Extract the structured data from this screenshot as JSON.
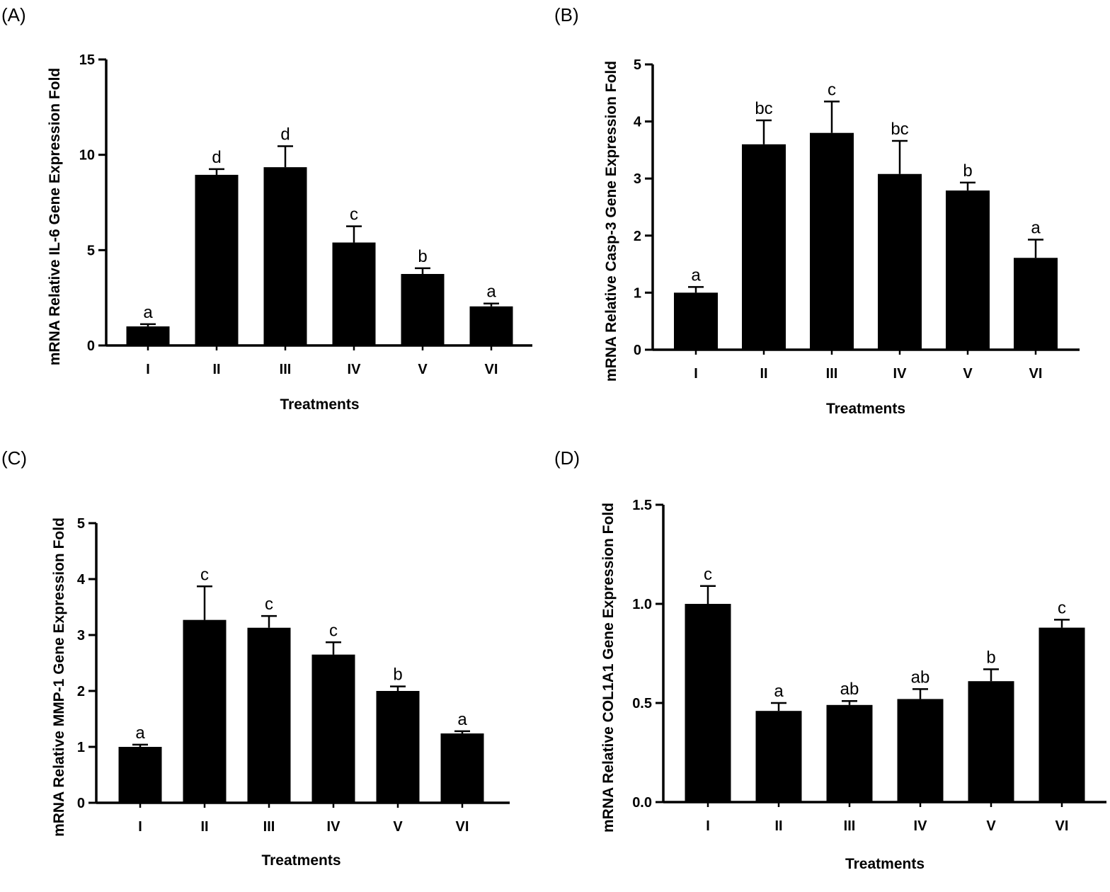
{
  "colors": {
    "bar": "#000000",
    "axis": "#000000",
    "background": "#ffffff"
  },
  "chart_data": [
    {
      "panel": "(A)",
      "type": "bar",
      "categories": [
        "I",
        "II",
        "III",
        "IV",
        "V",
        "VI"
      ],
      "values": [
        1.0,
        8.95,
        9.35,
        5.4,
        3.75,
        2.05
      ],
      "errors": [
        0.12,
        0.3,
        1.1,
        0.85,
        0.3,
        0.15
      ],
      "significance": [
        "a",
        "d",
        "d",
        "c",
        "b",
        "a"
      ],
      "ylabel": "mRNA Relative IL-6  Gene Expression Fold",
      "xlabel": "Treatments",
      "ylim": [
        0,
        15
      ],
      "yticks": [
        0,
        5,
        10,
        15
      ],
      "ytick_labels": [
        "0",
        "5",
        "10",
        "15"
      ]
    },
    {
      "panel": "(B)",
      "type": "bar",
      "categories": [
        "I",
        "II",
        "III",
        "IV",
        "V",
        "VI"
      ],
      "values": [
        1.0,
        3.6,
        3.8,
        3.08,
        2.79,
        1.61
      ],
      "errors": [
        0.1,
        0.42,
        0.55,
        0.58,
        0.14,
        0.32
      ],
      "significance": [
        "a",
        "bc",
        "c",
        "bc",
        "b",
        "a"
      ],
      "ylabel": "mRNA Relative Casp-3 Gene Expression Fold",
      "xlabel": "Treatments",
      "ylim": [
        0,
        5
      ],
      "yticks": [
        0,
        1,
        2,
        3,
        4,
        5
      ],
      "ytick_labels": [
        "0",
        "1",
        "2",
        "3",
        "4",
        "5"
      ]
    },
    {
      "panel": "(C)",
      "type": "bar",
      "categories": [
        "I",
        "II",
        "III",
        "IV",
        "V",
        "VI"
      ],
      "values": [
        1.0,
        3.27,
        3.13,
        2.65,
        2.0,
        1.24
      ],
      "errors": [
        0.04,
        0.6,
        0.21,
        0.22,
        0.08,
        0.04
      ],
      "significance": [
        "a",
        "c",
        "c",
        "c",
        "b",
        "a"
      ],
      "ylabel": "mRNA Relative MMP-1 Gene Expression Fold",
      "xlabel": "Treatments",
      "ylim": [
        0,
        5
      ],
      "yticks": [
        0,
        1,
        2,
        3,
        4,
        5
      ],
      "ytick_labels": [
        "0",
        "1",
        "2",
        "3",
        "4",
        "5"
      ]
    },
    {
      "panel": "(D)",
      "type": "bar",
      "categories": [
        "I",
        "II",
        "III",
        "IV",
        "V",
        "VI"
      ],
      "values": [
        1.0,
        0.46,
        0.49,
        0.52,
        0.61,
        0.88
      ],
      "errors": [
        0.09,
        0.04,
        0.02,
        0.05,
        0.06,
        0.04
      ],
      "significance": [
        "c",
        "a",
        "ab",
        "ab",
        "b",
        "c"
      ],
      "ylabel": "mRNA Relative COL1A1 Gene Expression Fold",
      "xlabel": "Treatments",
      "ylim": [
        0,
        1.5
      ],
      "yticks": [
        0,
        0.5,
        1.0,
        1.5
      ],
      "ytick_labels": [
        "0.0",
        "0.5",
        "1.0",
        "1.5"
      ]
    }
  ]
}
